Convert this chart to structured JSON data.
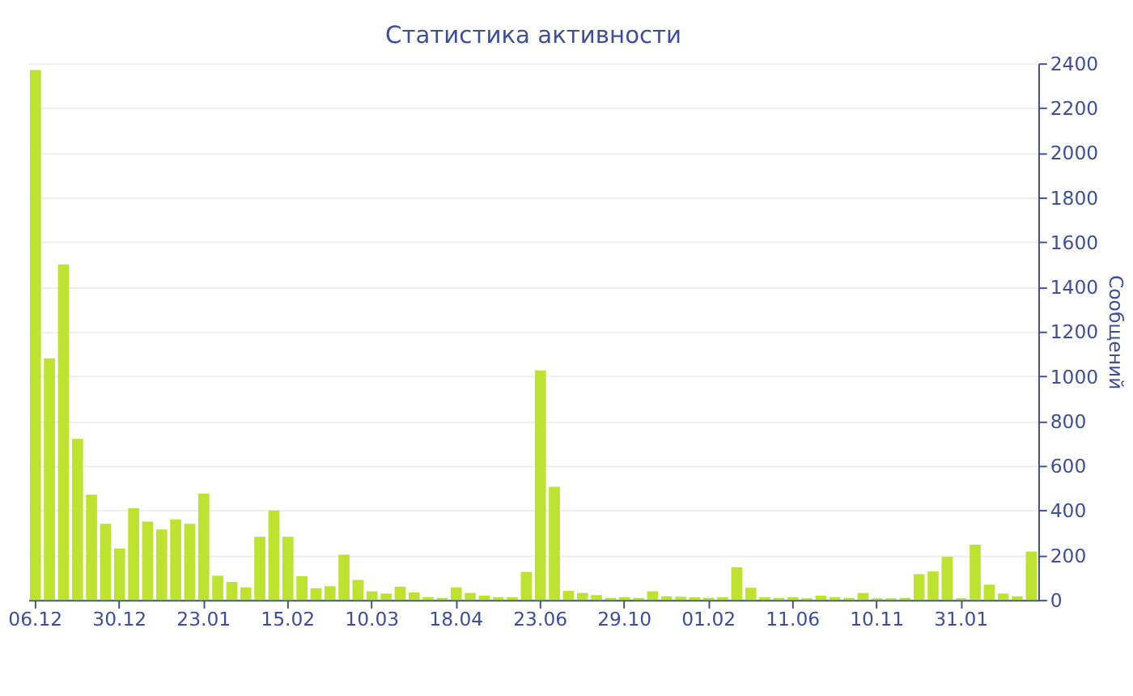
{
  "chart_data": {
    "type": "bar",
    "title": "Статистика активности",
    "ylabel": "Сообщений",
    "categories": [
      "06.12",
      null,
      null,
      null,
      null,
      null,
      "30.12",
      null,
      null,
      null,
      null,
      null,
      "23.01",
      null,
      null,
      null,
      null,
      null,
      "15.02",
      null,
      null,
      null,
      null,
      null,
      "10.03",
      null,
      null,
      null,
      null,
      null,
      "18.04",
      null,
      null,
      null,
      null,
      null,
      "23.06",
      null,
      null,
      null,
      null,
      null,
      "29.10",
      null,
      null,
      null,
      null,
      null,
      "01.02",
      null,
      null,
      null,
      null,
      null,
      "11.06",
      null,
      null,
      null,
      null,
      null,
      "10.11",
      null,
      null,
      null,
      null,
      null,
      "31.01",
      null,
      null,
      null,
      null,
      null
    ],
    "values": [
      2370,
      1080,
      1500,
      720,
      470,
      340,
      230,
      410,
      350,
      315,
      360,
      340,
      475,
      108,
      80,
      56,
      282,
      400,
      282,
      106,
      52,
      61,
      202,
      89,
      38,
      28,
      59,
      33,
      12,
      9,
      56,
      31,
      19,
      12,
      12,
      125,
      1026,
      506,
      40,
      31,
      21,
      9,
      12,
      9,
      38,
      16,
      14,
      12,
      9,
      12,
      146,
      54,
      12,
      9,
      12,
      7,
      19,
      12,
      9,
      31,
      7,
      7,
      9,
      115,
      127,
      193,
      7,
      247,
      68,
      28,
      16,
      216
    ],
    "color": "#bde22f",
    "ylim": [
      0,
      2400
    ],
    "yticks": [
      0,
      200,
      400,
      600,
      800,
      1000,
      1200,
      1400,
      1600,
      1800,
      2000,
      2200,
      2400
    ],
    "grid": "y"
  }
}
